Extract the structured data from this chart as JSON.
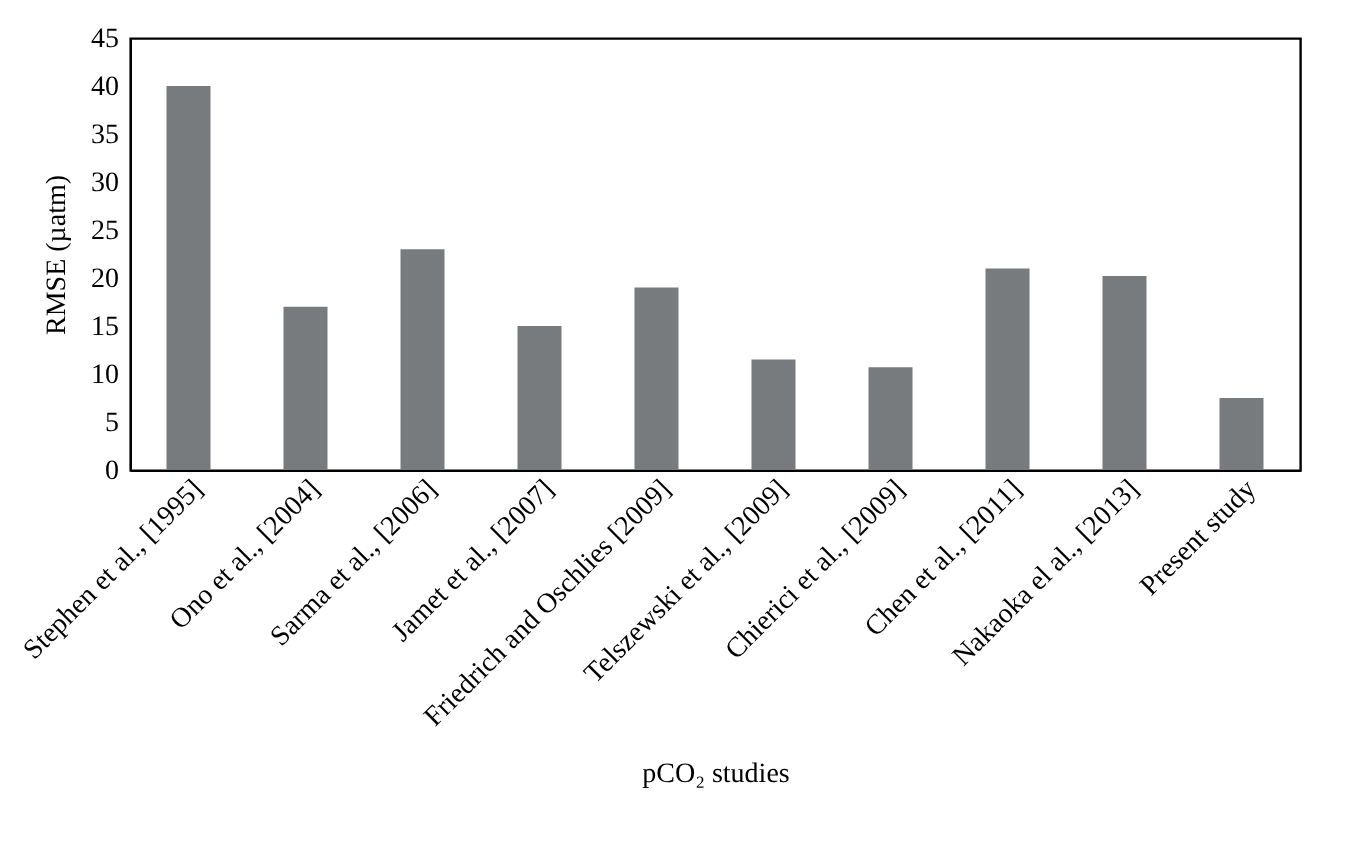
{
  "chart_data": {
    "type": "bar",
    "categories": [
      "Stephen et al., [1995]",
      "Ono et al., [2004]",
      "Sarma et al., [2006]",
      "Jamet et al., [2007]",
      "Friedrich and Oschlies [2009]",
      "Telszewski et al., [2009]",
      "Chierici et al., [2009]",
      "Chen et al., [2011]",
      "Nakaoka el al., [2013]",
      "Present study"
    ],
    "values": [
      40,
      17,
      23,
      15,
      19,
      11.5,
      10.7,
      21,
      20.2,
      7.5
    ],
    "color": "#787b7e",
    "xlabel": "pCO₂ studies",
    "ylabel": "RMSE (µatm)",
    "ylim": [
      0,
      45
    ],
    "yticks": [
      0,
      5,
      10,
      15,
      20,
      25,
      30,
      35,
      40,
      45
    ],
    "grid": false
  }
}
